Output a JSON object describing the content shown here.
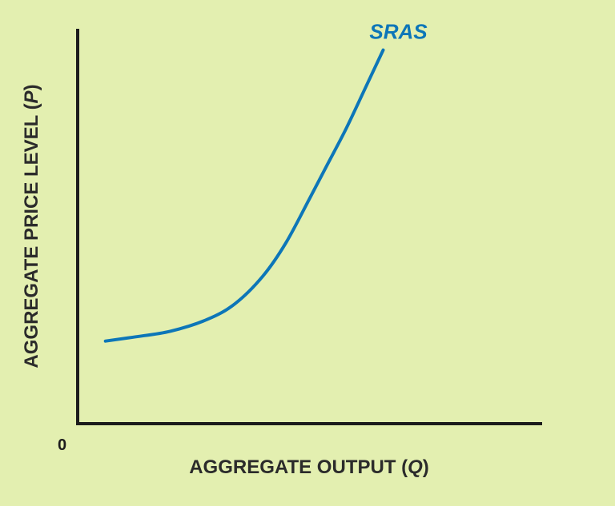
{
  "chart_data": {
    "type": "line",
    "title": "",
    "xlabel": "AGGREGATE OUTPUT (Q)",
    "xlabel_main": "AGGREGATE OUTPUT (",
    "xlabel_var": "Q",
    "xlabel_close": ")",
    "ylabel": "AGGREGATE PRICE LEVEL (P)",
    "ylabel_main": "AGGREGATE PRICE LEVEL (",
    "ylabel_var": "P",
    "ylabel_close": ")",
    "origin_label": "0",
    "xlim": [
      0,
      100
    ],
    "ylim": [
      0,
      100
    ],
    "grid": false,
    "series": [
      {
        "name": "SRAS",
        "color": "#0d76b8",
        "x": [
          6,
          12,
          20,
          28,
          34,
          40,
          45,
          50,
          54,
          58,
          62,
          66
        ],
        "y": [
          21,
          22,
          23.5,
          26.5,
          30.5,
          37.5,
          46,
          57,
          66,
          75,
          85,
          95
        ]
      }
    ]
  }
}
